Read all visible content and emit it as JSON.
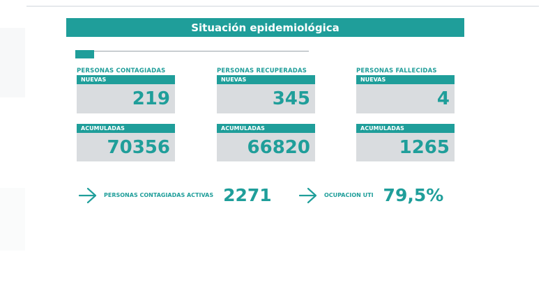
{
  "title": "Situación epidemiológica",
  "groups": [
    {
      "title": "PERSONAS CONTAGIADAS",
      "nuevas_label": "NUEVAS",
      "nuevas_value": "219",
      "acumuladas_label": "ACUMULADAS",
      "acumuladas_value": "70356"
    },
    {
      "title": "PERSONAS RECUPERADAS",
      "nuevas_label": "NUEVAS",
      "nuevas_value": "345",
      "acumuladas_label": "ACUMULADAS",
      "acumuladas_value": "66820"
    },
    {
      "title": "PERSONAS FALLECIDAS",
      "nuevas_label": "NUEVAS",
      "nuevas_value": "4",
      "acumuladas_label": "ACUMULADAS",
      "acumuladas_value": "1265"
    }
  ],
  "summary": {
    "activas_label": "PERSONAS CONTAGIADAS ACTIVAS",
    "activas_value": "2271",
    "uti_label": "OCUPACION UTI",
    "uti_value": "79,5%"
  },
  "colors": {
    "accent": "#1f9e9a",
    "card_background": "#d9dcdf"
  },
  "icons": [
    "arrow-right-icon",
    "arrow-right-icon"
  ]
}
